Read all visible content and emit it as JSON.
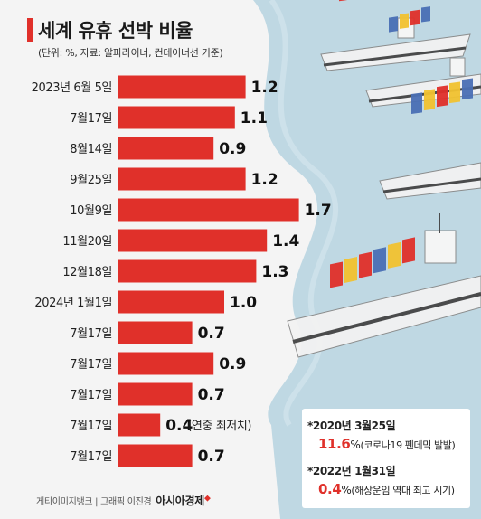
{
  "header": {
    "title": "세계 유휴 선박 비율",
    "subtitle": "(단위: %, 자료: 알파라이너, 컨테이너선 기준)"
  },
  "chart_data": {
    "type": "bar",
    "orientation": "horizontal",
    "title": "세계 유휴 선박 비율",
    "subtitle": "(단위: %, 자료: 알파라이너, 컨테이너선 기준)",
    "unit": "%",
    "categories": [
      "2023년 6월 5일",
      "7월17일",
      "8월14일",
      "9월25일",
      "10월9일",
      "11월20일",
      "12월18일",
      "2024년 1월1일",
      "7월17일",
      "7월17일",
      "7월17일",
      "7월17일",
      "7월17일"
    ],
    "values": [
      1.2,
      1.1,
      0.9,
      1.2,
      1.7,
      1.4,
      1.3,
      1.0,
      0.7,
      0.9,
      0.7,
      0.4,
      0.7
    ],
    "value_labels": [
      "1.2",
      "1.1",
      "0.9",
      "1.2",
      "1.7",
      "1.4",
      "1.3",
      "1.0",
      "0.7",
      "0.9",
      "0.7",
      "0.4",
      "0.7"
    ],
    "annotations": [
      "",
      "",
      "",
      "",
      "",
      "",
      "",
      "",
      "",
      "",
      "",
      "(연중 최저치)",
      ""
    ],
    "bar_color": "#e0302a",
    "grid": false,
    "legend": "none"
  },
  "notes": [
    {
      "date": "*2020년 3월25일",
      "value": "11.6",
      "unit": "%",
      "desc": "(코로나19 펜데믹 발발)"
    },
    {
      "date": "*2022년 1월31일",
      "value": "0.4",
      "unit": "%",
      "desc": "(해상운임 역대 최고 시기)"
    }
  ],
  "footer": {
    "credit": "게티이미지뱅크 | 그래픽 이진경",
    "brand": "아시아경제"
  },
  "colors": {
    "accent": "#e0302a",
    "sea": "#bfd8e3",
    "sea_dark": "#a9cad8",
    "background": "#f4f4f4"
  }
}
